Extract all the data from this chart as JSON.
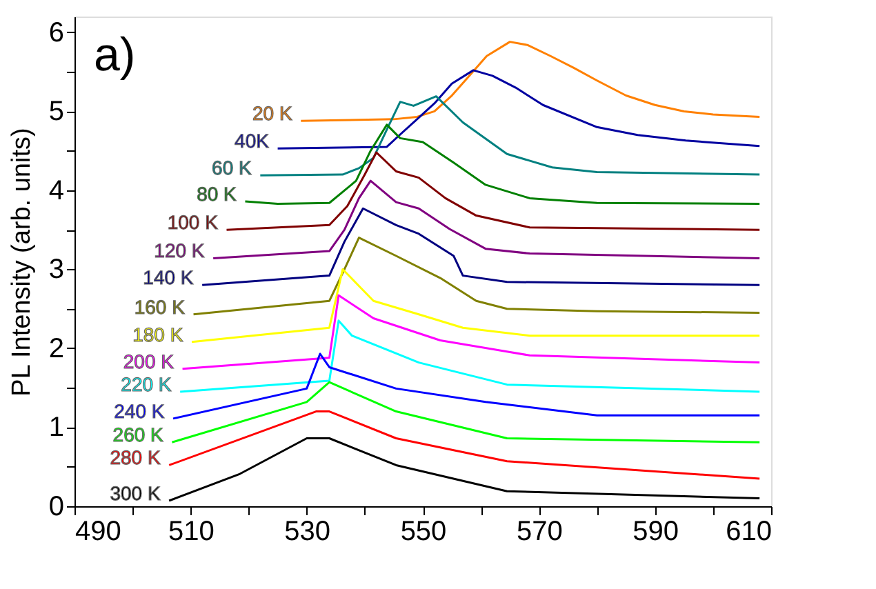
{
  "chart_data": {
    "type": "line",
    "ylabel": "PL Intensity (arb. units)",
    "annotations": [
      "a)"
    ],
    "xlim": [
      490,
      610
    ],
    "ylim": [
      0,
      6.2
    ],
    "xticks": [
      490,
      {
        "value": 500,
        "label": null
      },
      510,
      {
        "value": 520,
        "label": null
      },
      530,
      {
        "value": 540,
        "label": null
      },
      550,
      {
        "value": 560,
        "label": null
      },
      570,
      {
        "value": 580,
        "label": null
      },
      590,
      {
        "value": 600,
        "label": null
      },
      610
    ],
    "yticks": [
      0,
      {
        "value": 0.5,
        "label": null
      },
      1,
      {
        "value": 1.5,
        "label": null
      },
      2,
      {
        "value": 2.5,
        "label": null
      },
      3,
      {
        "value": 3.5,
        "label": null
      },
      4,
      {
        "value": 4.5,
        "label": null
      },
      5,
      {
        "value": 5.5,
        "label": null
      },
      6
    ],
    "grid": false,
    "legend": false,
    "line_style": "solid",
    "marker": "none",
    "series": [
      {
        "name": "20 K",
        "color": "#ff8000",
        "x": [
          529,
          545,
          549,
          552,
          555,
          558,
          561,
          565,
          568,
          572,
          576,
          580,
          585,
          590,
          595,
          600,
          608
        ],
        "values": [
          4.88,
          4.9,
          4.93,
          5.0,
          5.2,
          5.45,
          5.7,
          5.88,
          5.84,
          5.7,
          5.55,
          5.39,
          5.2,
          5.08,
          5.0,
          4.96,
          4.93
        ]
      },
      {
        "name": "40K",
        "color": "#0000a0",
        "x": [
          525,
          543.8,
          546,
          549.3,
          552,
          555,
          558.7,
          562,
          566,
          570.7,
          580,
          587,
          595.3,
          608
        ],
        "values": [
          4.53,
          4.55,
          4.7,
          4.92,
          5.1,
          5.35,
          5.52,
          5.45,
          5.3,
          5.08,
          4.8,
          4.7,
          4.63,
          4.56
        ]
      },
      {
        "name": "60 K",
        "color": "#008080",
        "x": [
          522,
          536.2,
          539,
          541.5,
          544,
          546.1,
          548.4,
          552.3,
          556.9,
          564.5,
          572.3,
          580,
          608
        ],
        "values": [
          4.19,
          4.2,
          4.28,
          4.41,
          4.8,
          5.12,
          5.07,
          5.19,
          4.86,
          4.46,
          4.29,
          4.23,
          4.2
        ]
      },
      {
        "name": "80 K",
        "color": "#008000",
        "x": [
          519.4,
          525,
          533.9,
          538.5,
          541,
          543.8,
          546.1,
          550,
          555.3,
          560.8,
          568.4,
          580,
          608
        ],
        "values": [
          3.86,
          3.83,
          3.84,
          4.12,
          4.5,
          4.83,
          4.66,
          4.61,
          4.35,
          4.07,
          3.9,
          3.84,
          3.83
        ]
      },
      {
        "name": "100 K",
        "color": "#800000",
        "x": [
          516.2,
          533.9,
          537,
          540,
          542,
          545.4,
          549.3,
          553.9,
          559.2,
          568.4,
          608
        ],
        "values": [
          3.5,
          3.56,
          3.8,
          4.2,
          4.48,
          4.24,
          4.16,
          3.9,
          3.68,
          3.53,
          3.5
        ]
      },
      {
        "name": "120 K",
        "color": "#800080",
        "x": [
          513.9,
          533.9,
          536.5,
          539,
          541,
          545.4,
          549.3,
          554.6,
          560.8,
          568.4,
          608
        ],
        "values": [
          3.14,
          3.23,
          3.5,
          3.9,
          4.12,
          3.85,
          3.77,
          3.51,
          3.26,
          3.2,
          3.14
        ]
      },
      {
        "name": "140 K",
        "color": "#000080",
        "x": [
          512,
          533.9,
          536.5,
          539.7,
          545.4,
          549.3,
          555.3,
          556.9,
          564.5,
          608
        ],
        "values": [
          2.8,
          2.92,
          3.35,
          3.77,
          3.56,
          3.45,
          3.17,
          2.92,
          2.84,
          2.8
        ]
      },
      {
        "name": "160 K",
        "color": "#808000",
        "x": [
          510.5,
          533.9,
          536.5,
          539,
          545.4,
          553,
          559.2,
          564.5,
          580,
          608
        ],
        "values": [
          2.43,
          2.6,
          3.0,
          3.4,
          3.17,
          2.89,
          2.6,
          2.5,
          2.47,
          2.45
        ]
      },
      {
        "name": "180 K",
        "color": "#ffff00",
        "x": [
          510.2,
          533.9,
          536.2,
          541.5,
          549.3,
          556.9,
          568.4,
          608
        ],
        "values": [
          2.08,
          2.26,
          3.0,
          2.6,
          2.43,
          2.26,
          2.16,
          2.16
        ]
      },
      {
        "name": "200 K",
        "color": "#ff00ff",
        "x": [
          508.6,
          533.9,
          535.5,
          541.5,
          553,
          568.4,
          608
        ],
        "values": [
          1.74,
          1.88,
          2.67,
          2.38,
          2.1,
          1.91,
          1.82
        ]
      },
      {
        "name": "220 K",
        "color": "#00ffff",
        "x": [
          508.2,
          533.9,
          535.5,
          537.8,
          549.3,
          564.5,
          608
        ],
        "values": [
          1.45,
          1.59,
          2.35,
          2.16,
          1.82,
          1.54,
          1.45
        ]
      },
      {
        "name": "240 K",
        "color": "#0000ff",
        "x": [
          507,
          530,
          532.3,
          533.9,
          545.4,
          560.8,
          580,
          608
        ],
        "values": [
          1.11,
          1.49,
          1.93,
          1.76,
          1.49,
          1.32,
          1.15,
          1.15
        ]
      },
      {
        "name": "260 K",
        "color": "#00ff00",
        "x": [
          506.8,
          530,
          533.9,
          545.4,
          564.5,
          608
        ],
        "values": [
          0.81,
          1.32,
          1.57,
          1.2,
          0.86,
          0.81
        ]
      },
      {
        "name": "280 K",
        "color": "#ff0000",
        "x": [
          506.3,
          531.6,
          533.9,
          545.4,
          564.5,
          608
        ],
        "values": [
          0.52,
          1.2,
          1.2,
          0.86,
          0.57,
          0.35
        ]
      },
      {
        "name": "300 K",
        "color": "#000000",
        "x": [
          506.3,
          518.5,
          530,
          533.9,
          545.4,
          564.5,
          608
        ],
        "values": [
          0.07,
          0.41,
          0.86,
          0.86,
          0.52,
          0.19,
          0.1
        ]
      }
    ]
  }
}
